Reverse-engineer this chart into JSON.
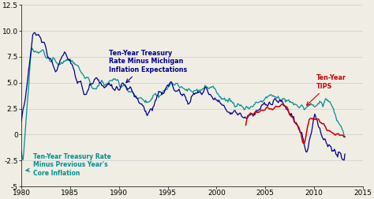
{
  "xlim": [
    1980,
    2015
  ],
  "ylim": [
    -5,
    12.5
  ],
  "yticks": [
    -5,
    -2.5,
    0,
    2.5,
    5.0,
    7.5,
    10.0,
    12.5
  ],
  "xticks": [
    1980,
    1985,
    1990,
    1995,
    2000,
    2005,
    2010,
    2015
  ],
  "color_navy": "#00008B",
  "color_teal": "#009090",
  "color_red": "#CC0000",
  "bg_color": "#F0EDE4",
  "grid_color": "#CCCCCC"
}
